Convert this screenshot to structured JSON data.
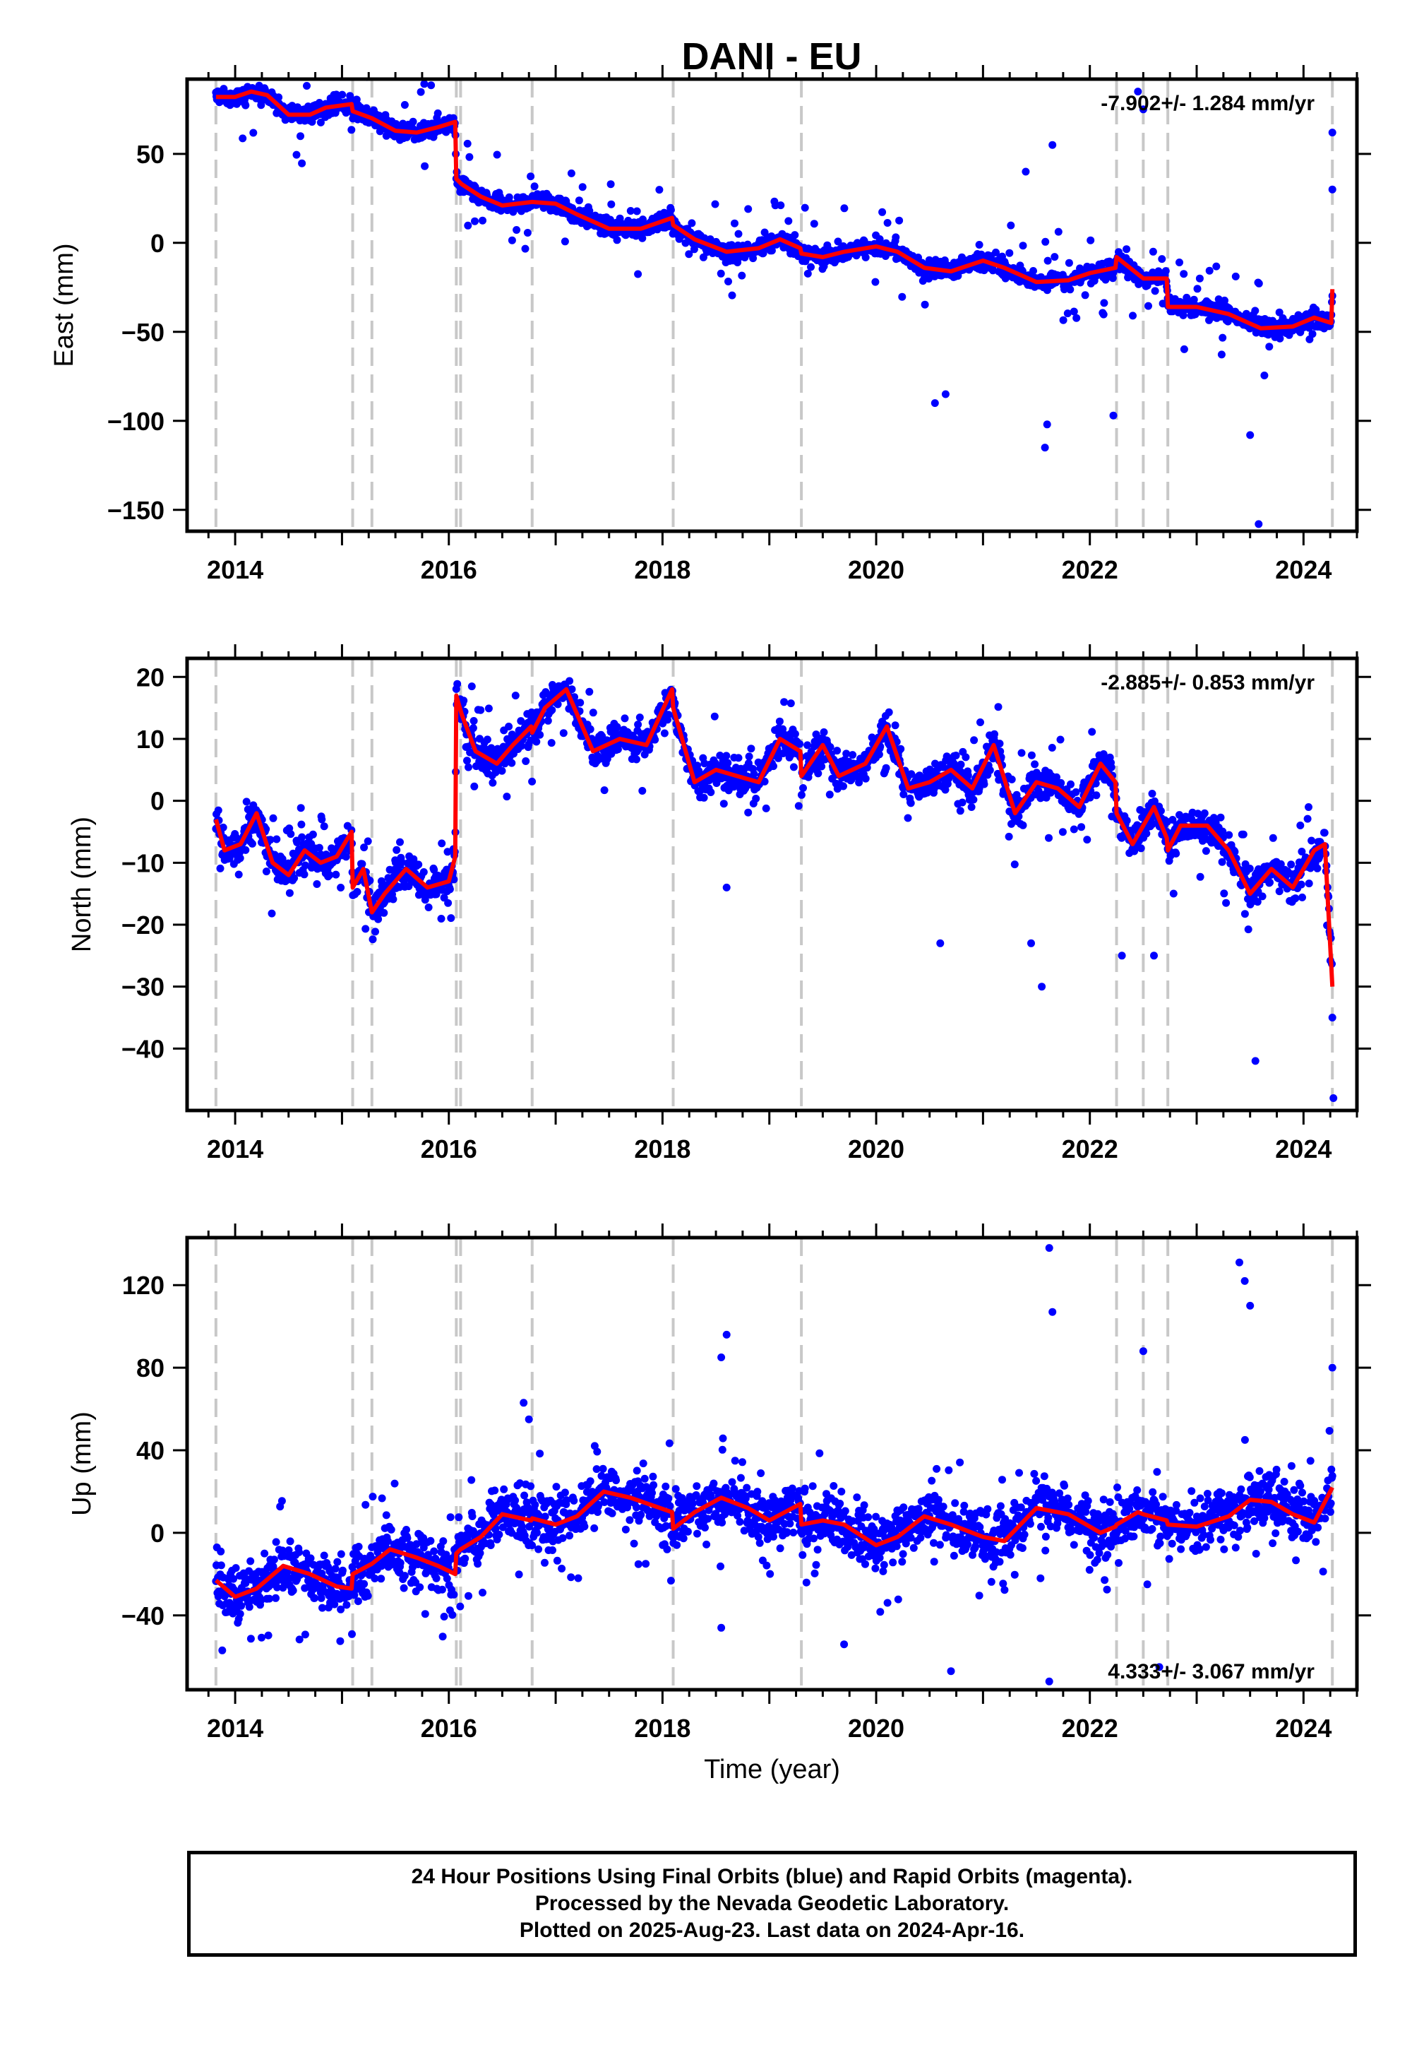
{
  "title": "DANI - EU",
  "colors": {
    "final_orbits": "#0000ff",
    "model": "#ff0000",
    "offset_lines": "#c8c8c8",
    "frame": "#000000"
  },
  "chart_data": [
    {
      "type": "scatter",
      "ylabel": "East (mm)",
      "xlim": [
        2013.55,
        2024.5
      ],
      "ylim": [
        -162,
        92
      ],
      "yticks": [
        50,
        0,
        -50,
        -100,
        -150
      ],
      "ytick_labels": [
        "50",
        "0",
        "−50",
        "−100",
        "−150"
      ],
      "xticks": [
        2014,
        2016,
        2018,
        2020,
        2022,
        2024
      ],
      "xtick_labels": [
        "2014",
        "2016",
        "2018",
        "2020",
        "2022",
        "2024"
      ],
      "rate": "-7.902+/- 1.284 mm/yr",
      "rate_position": "top-right",
      "offset_epochs": [
        2013.82,
        2015.1,
        2015.28,
        2016.07,
        2016.11,
        2016.78,
        2018.1,
        2019.3,
        2022.25,
        2022.5,
        2022.73,
        2024.27
      ],
      "model_x": [
        2013.82,
        2014.0,
        2014.15,
        2014.3,
        2014.5,
        2014.7,
        2014.85,
        2015.09,
        2015.1,
        2015.28,
        2015.5,
        2015.7,
        2015.9,
        2016.06,
        2016.07,
        2016.12,
        2016.3,
        2016.5,
        2016.78,
        2017.0,
        2017.2,
        2017.5,
        2017.8,
        2018.09,
        2018.1,
        2018.3,
        2018.6,
        2018.9,
        2019.1,
        2019.29,
        2019.3,
        2019.5,
        2019.7,
        2020.0,
        2020.2,
        2020.45,
        2020.7,
        2021.0,
        2021.2,
        2021.5,
        2021.8,
        2022.0,
        2022.24,
        2022.25,
        2022.5,
        2022.72,
        2022.73,
        2023.0,
        2023.3,
        2023.6,
        2023.9,
        2024.1,
        2024.26,
        2024.27
      ],
      "model_y": [
        82,
        82,
        85,
        83,
        72,
        72,
        76,
        78,
        74,
        70,
        63,
        62,
        65,
        68,
        36,
        33,
        26,
        21,
        23,
        22,
        16,
        8,
        8,
        14,
        10,
        2,
        -5,
        -3,
        2,
        -3,
        -6,
        -8,
        -5,
        -2,
        -5,
        -14,
        -16,
        -10,
        -14,
        -22,
        -21,
        -17,
        -14,
        -8,
        -20,
        -20,
        -36,
        -36,
        -40,
        -48,
        -47,
        -42,
        -45,
        -26
      ],
      "scatter": {
        "sigma": 3.6,
        "outlier_rate": 0.08,
        "outlier_spread": 28,
        "seed": 11
      },
      "extremes": [
        [
          2020.55,
          -90
        ],
        [
          2020.65,
          -85
        ],
        [
          2021.58,
          -115
        ],
        [
          2021.6,
          -102
        ],
        [
          2022.22,
          -97
        ],
        [
          2023.58,
          -158
        ],
        [
          2023.5,
          -108
        ],
        [
          2021.65,
          55
        ],
        [
          2022.5,
          75
        ],
        [
          2024.27,
          62
        ],
        [
          2024.27,
          30
        ],
        [
          2021.4,
          40
        ],
        [
          2022.45,
          85
        ]
      ]
    },
    {
      "type": "scatter",
      "ylabel": "North (mm)",
      "xlim": [
        2013.55,
        2024.5
      ],
      "ylim": [
        -50,
        23
      ],
      "yticks": [
        20,
        10,
        0,
        -10,
        -20,
        -30,
        -40
      ],
      "ytick_labels": [
        "20",
        "10",
        "0",
        "−10",
        "−20",
        "−30",
        "−40"
      ],
      "xticks": [
        2014,
        2016,
        2018,
        2020,
        2022,
        2024
      ],
      "xtick_labels": [
        "2014",
        "2016",
        "2018",
        "2020",
        "2022",
        "2024"
      ],
      "rate": "-2.885+/- 0.853 mm/yr",
      "rate_position": "top-right",
      "offset_epochs": [
        2013.82,
        2015.1,
        2015.28,
        2016.07,
        2016.11,
        2016.78,
        2018.1,
        2019.3,
        2022.25,
        2022.5,
        2022.73,
        2024.27
      ],
      "model_x": [
        2013.82,
        2013.9,
        2014.05,
        2014.2,
        2014.35,
        2014.5,
        2014.65,
        2014.8,
        2014.95,
        2015.09,
        2015.1,
        2015.2,
        2015.28,
        2015.4,
        2015.6,
        2015.8,
        2016.0,
        2016.06,
        2016.07,
        2016.12,
        2016.25,
        2016.45,
        2016.6,
        2016.77,
        2016.78,
        2016.9,
        2017.1,
        2017.35,
        2017.6,
        2017.85,
        2018.09,
        2018.1,
        2018.3,
        2018.5,
        2018.7,
        2018.9,
        2019.1,
        2019.29,
        2019.3,
        2019.5,
        2019.65,
        2019.9,
        2020.1,
        2020.3,
        2020.5,
        2020.7,
        2020.9,
        2021.1,
        2021.3,
        2021.5,
        2021.7,
        2021.9,
        2022.1,
        2022.24,
        2022.25,
        2022.4,
        2022.5,
        2022.6,
        2022.72,
        2022.73,
        2022.85,
        2023.1,
        2023.3,
        2023.5,
        2023.7,
        2023.9,
        2024.1,
        2024.2,
        2024.27
      ],
      "model_y": [
        -3,
        -8,
        -7,
        -2,
        -10,
        -12,
        -8,
        -10,
        -9,
        -5,
        -14,
        -11,
        -18,
        -15,
        -11,
        -14,
        -13,
        -9,
        17,
        14,
        8,
        6,
        9,
        12,
        11,
        15,
        18,
        8,
        10,
        9,
        18,
        15,
        3,
        5,
        4,
        3,
        10,
        8,
        4,
        9,
        4,
        6,
        12,
        2,
        3,
        5,
        2,
        9,
        -2,
        3,
        2,
        -1,
        6,
        3,
        -2,
        -7,
        -4,
        -1,
        -6,
        -8,
        -4,
        -4,
        -8,
        -15,
        -11,
        -14,
        -8,
        -7,
        -30
      ],
      "scatter": {
        "sigma": 1.9,
        "outlier_rate": 0.07,
        "outlier_spread": 9,
        "seed": 23
      },
      "extremes": [
        [
          2024.28,
          -48
        ],
        [
          2024.27,
          -35
        ],
        [
          2023.55,
          -42
        ],
        [
          2021.55,
          -30
        ],
        [
          2022.3,
          -25
        ],
        [
          2022.6,
          -25
        ],
        [
          2018.6,
          -14
        ],
        [
          2020.6,
          -23
        ],
        [
          2021.45,
          -23
        ]
      ]
    },
    {
      "type": "scatter",
      "ylabel": "Up (mm)",
      "xlabel": "Time (year)",
      "xlim": [
        2013.55,
        2024.5
      ],
      "ylim": [
        -76,
        143
      ],
      "yticks": [
        120,
        80,
        40,
        0,
        -40
      ],
      "ytick_labels": [
        "120",
        "80",
        "40",
        "0",
        "−40"
      ],
      "xticks": [
        2014,
        2016,
        2018,
        2020,
        2022,
        2024
      ],
      "xtick_labels": [
        "2014",
        "2016",
        "2018",
        "2020",
        "2022",
        "2024"
      ],
      "rate": "4.333+/- 3.067 mm/yr",
      "rate_position": "bottom-right",
      "offset_epochs": [
        2013.82,
        2015.1,
        2015.28,
        2016.07,
        2016.11,
        2016.78,
        2018.1,
        2019.3,
        2022.25,
        2022.5,
        2022.73,
        2024.27
      ],
      "model_x": [
        2013.82,
        2014.0,
        2014.2,
        2014.45,
        2014.7,
        2014.95,
        2015.09,
        2015.1,
        2015.28,
        2015.45,
        2015.7,
        2015.9,
        2016.06,
        2016.07,
        2016.11,
        2016.3,
        2016.5,
        2016.77,
        2016.78,
        2017.0,
        2017.2,
        2017.45,
        2017.7,
        2018.09,
        2018.1,
        2018.3,
        2018.55,
        2018.8,
        2019.0,
        2019.29,
        2019.3,
        2019.5,
        2019.7,
        2020.0,
        2020.2,
        2020.45,
        2020.7,
        2021.0,
        2021.2,
        2021.5,
        2021.8,
        2022.1,
        2022.24,
        2022.25,
        2022.45,
        2022.5,
        2022.72,
        2022.73,
        2023.0,
        2023.3,
        2023.5,
        2023.7,
        2023.9,
        2024.1,
        2024.27
      ],
      "model_y": [
        -23,
        -31,
        -27,
        -16,
        -20,
        -26,
        -27,
        -20,
        -15,
        -8,
        -12,
        -16,
        -20,
        -10,
        -8,
        -2,
        9,
        6,
        7,
        4,
        8,
        20,
        17,
        10,
        2,
        10,
        17,
        12,
        6,
        14,
        4,
        6,
        4,
        -6,
        -2,
        8,
        4,
        -2,
        -4,
        12,
        9,
        0,
        3,
        4,
        10,
        9,
        6,
        4,
        3,
        8,
        16,
        15,
        9,
        5,
        22
      ],
      "scatter": {
        "sigma": 9,
        "outlier_rate": 0.1,
        "outlier_spread": 34,
        "seed": 37
      },
      "extremes": [
        [
          2021.62,
          138
        ],
        [
          2021.65,
          107
        ],
        [
          2023.4,
          131
        ],
        [
          2023.45,
          122
        ],
        [
          2023.5,
          110
        ],
        [
          2018.6,
          96
        ],
        [
          2018.55,
          85
        ],
        [
          2016.7,
          63
        ],
        [
          2021.62,
          -72
        ],
        [
          2022.65,
          -65
        ],
        [
          2020.7,
          -67
        ],
        [
          2018.55,
          -46
        ],
        [
          2019.7,
          -54
        ],
        [
          2024.27,
          80
        ],
        [
          2022.5,
          88
        ],
        [
          2016.75,
          55
        ]
      ]
    }
  ],
  "footer": {
    "line1": "24 Hour Positions Using Final Orbits (blue) and Rapid Orbits (magenta).",
    "line2": "Processed by the Nevada Geodetic Laboratory.",
    "line3": "Plotted on 2025-Aug-23. Last data on 2024-Apr-16."
  }
}
